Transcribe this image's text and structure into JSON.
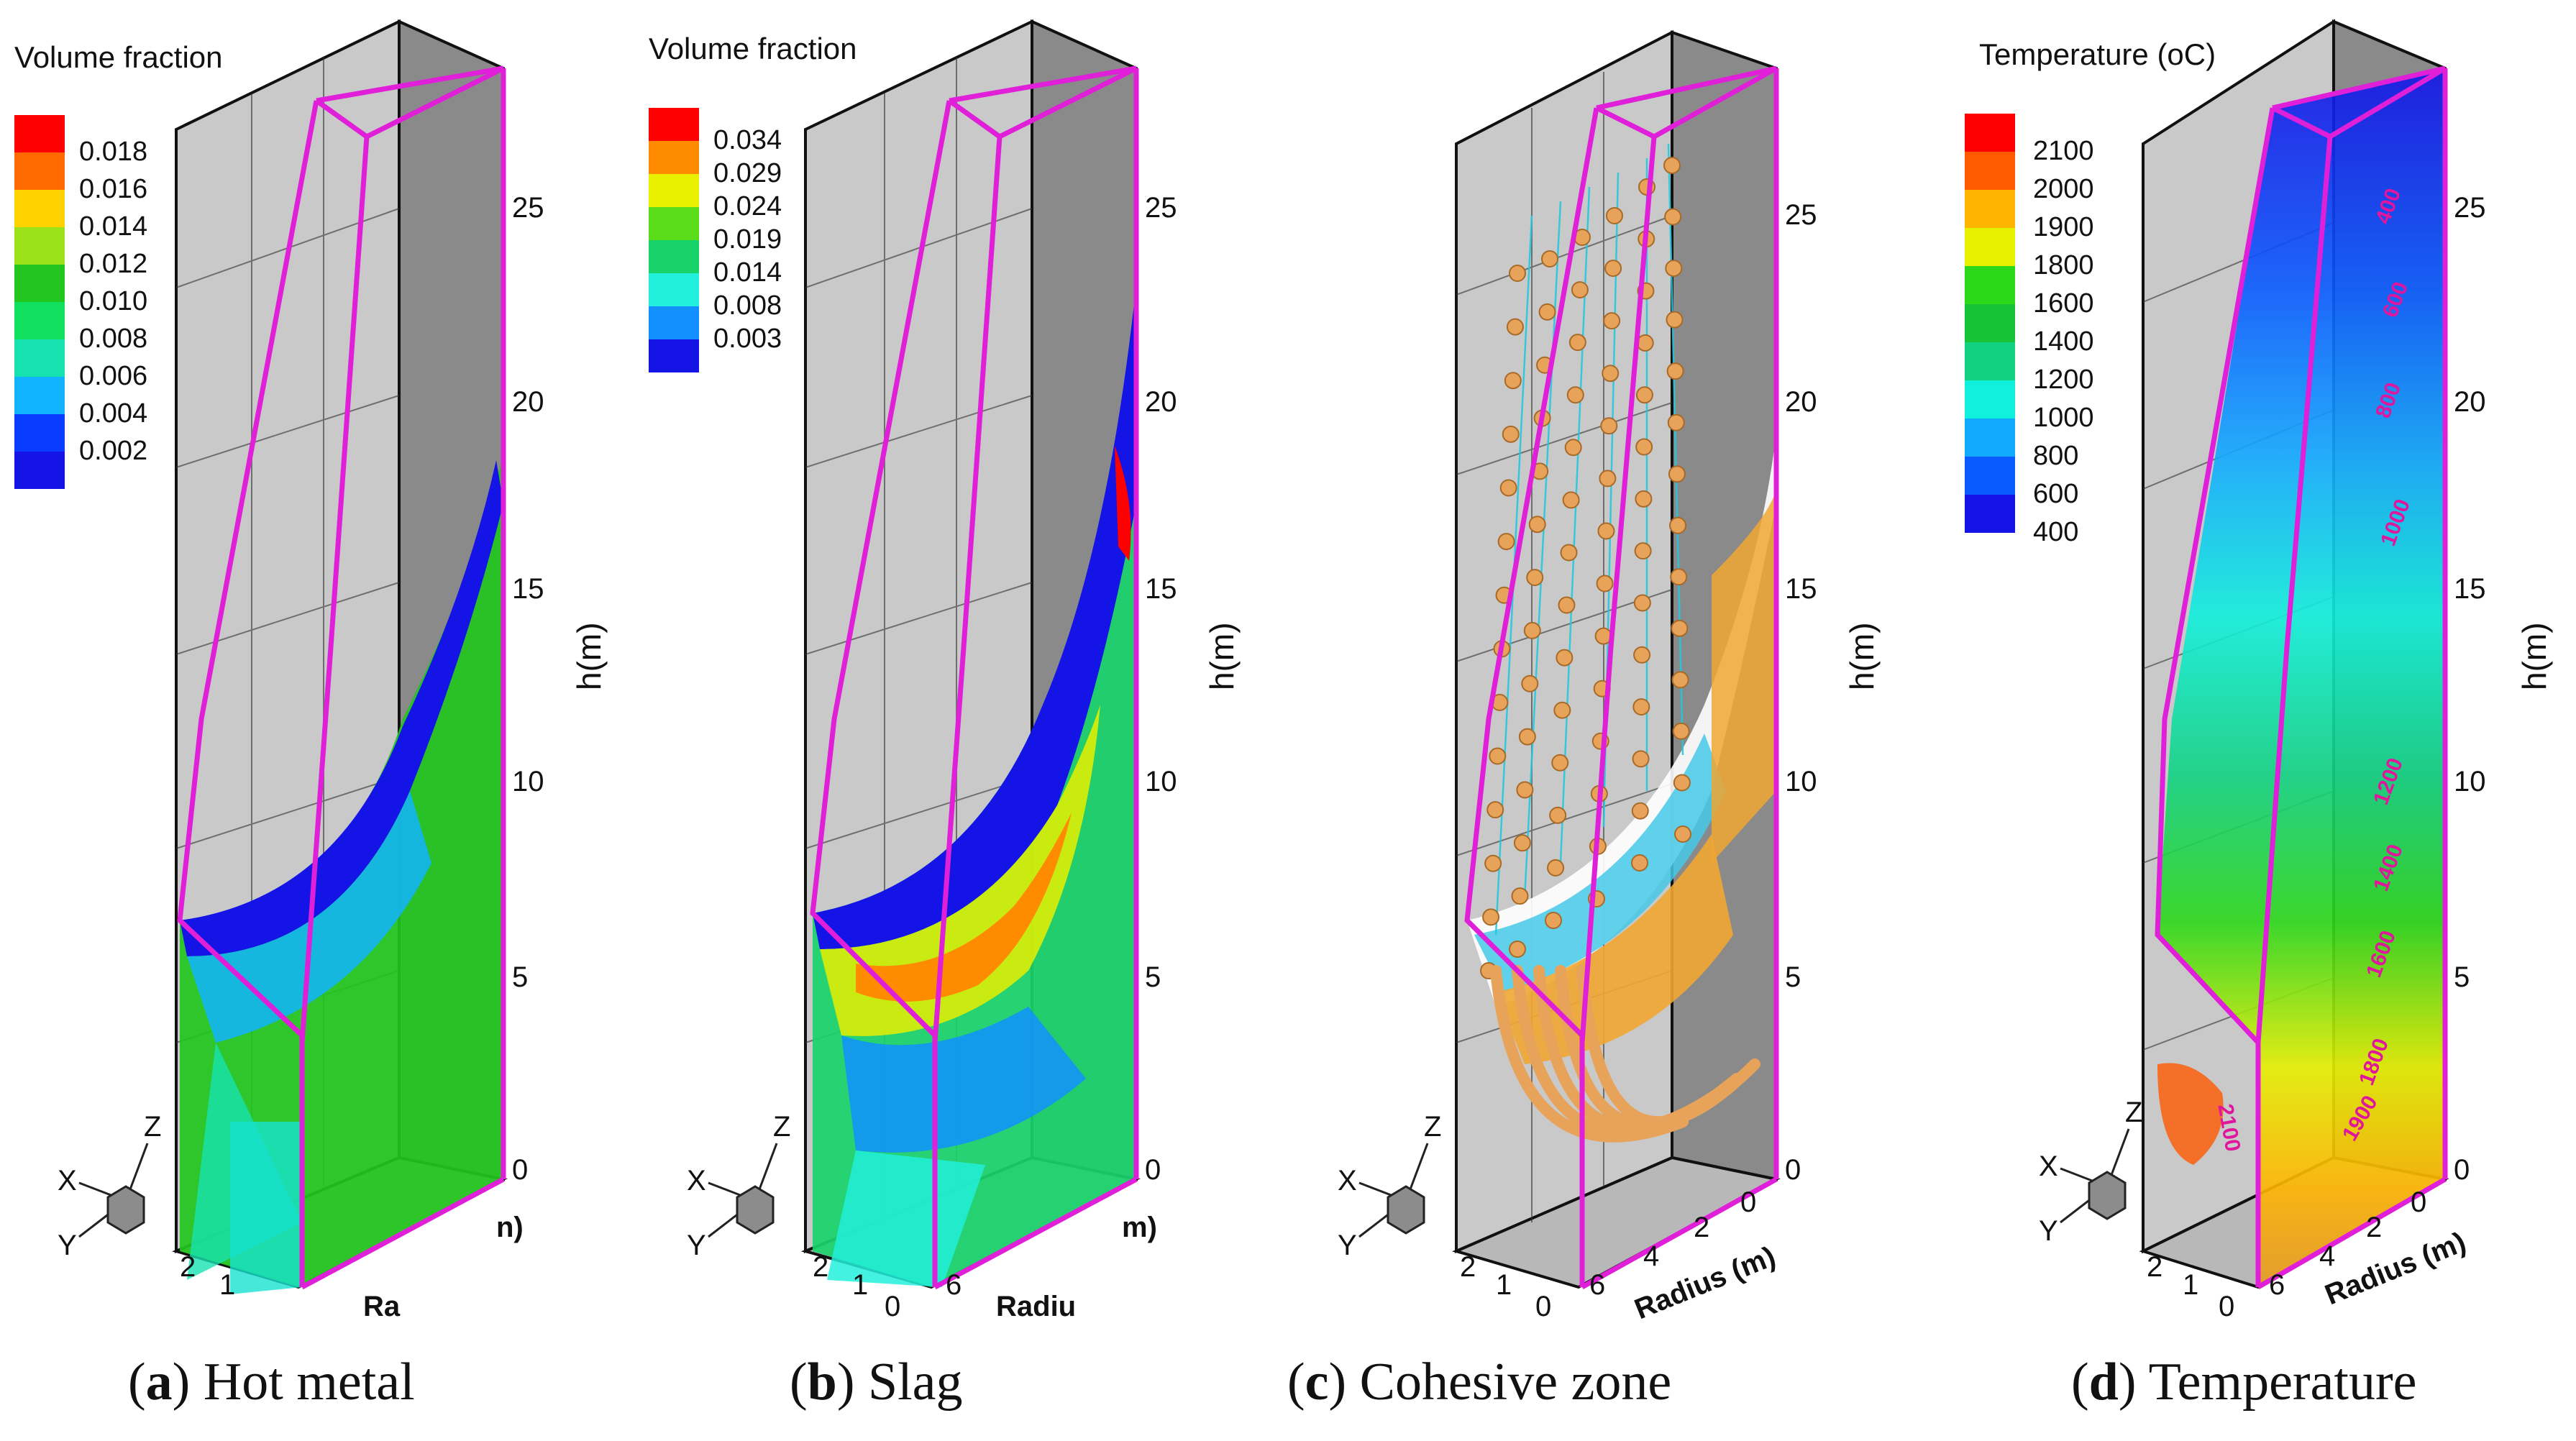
{
  "panels": [
    {
      "id": "a",
      "legend_title": "Volume fraction",
      "legend_levels": [
        "0.018",
        "0.016",
        "0.014",
        "0.012",
        "0.010",
        "0.008",
        "0.006",
        "0.004",
        "0.002"
      ],
      "legend_colors": [
        "#ff0000",
        "#ff6a00",
        "#ffd200",
        "#9be21a",
        "#22c61e",
        "#10e05e",
        "#16e2b0",
        "#12b4ff",
        "#0a3cff",
        "#1414e6"
      ],
      "h_ticks": [
        "25",
        "20",
        "15",
        "10",
        "5",
        "0"
      ],
      "h_label": "h(m)",
      "caption_letter": "a",
      "caption_text": "Hot metal"
    },
    {
      "id": "b",
      "legend_title": "Volume fraction",
      "legend_levels": [
        "0.034",
        "0.029",
        "0.024",
        "0.019",
        "0.014",
        "0.008",
        "0.003"
      ],
      "legend_colors": [
        "#ff0000",
        "#ff8c00",
        "#e8f000",
        "#5adc1a",
        "#18d26a",
        "#22f0dc",
        "#1290ff",
        "#1414e6"
      ],
      "h_ticks": [
        "25",
        "20",
        "15",
        "10",
        "5",
        "0"
      ],
      "h_label": "h(m)",
      "caption_letter": "b",
      "caption_text": "Slag"
    },
    {
      "id": "c",
      "h_ticks": [
        "25",
        "20",
        "15",
        "10",
        "5",
        "0"
      ],
      "h_label": "h(m)",
      "radius_label": "Radius (m)",
      "radius_ticks": [
        "6",
        "4",
        "2",
        "0"
      ],
      "depth_ticks": [
        "2",
        "1",
        "0"
      ],
      "caption_letter": "c",
      "caption_text": "Cohesive zone"
    },
    {
      "id": "d",
      "legend_title": "Temperature (oC)",
      "legend_levels": [
        "2100",
        "2000",
        "1900",
        "1800",
        "1600",
        "1400",
        "1200",
        "1000",
        "800",
        "600",
        "400"
      ],
      "legend_colors": [
        "#ff0000",
        "#ff5a00",
        "#ffb400",
        "#e6f000",
        "#2cd81a",
        "#18c236",
        "#12d282",
        "#10f0dc",
        "#12aaff",
        "#0a5aff",
        "#1414e6"
      ],
      "h_ticks": [
        "25",
        "20",
        "15",
        "10",
        "5",
        "0"
      ],
      "h_label": "h(m)",
      "radius_label": "Radius (m)",
      "radius_ticks": [
        "6",
        "4",
        "2",
        "0"
      ],
      "depth_ticks": [
        "2",
        "1",
        "0"
      ],
      "isolines": [
        "400",
        "600",
        "800",
        "1000",
        "1200",
        "1400",
        "1600",
        "1800",
        "1900",
        "2100"
      ],
      "caption_letter": "d",
      "caption_text": "Temperature"
    }
  ],
  "partial_labels": {
    "a_radius": "Ra",
    "a_depth": [
      "2",
      "1"
    ],
    "a_end": "n)",
    "b_radius": "Radiu",
    "b_radius_ticks": [
      "0",
      "6"
    ],
    "b_depth": [
      "2",
      "1"
    ],
    "b_end": "m)"
  },
  "triad": {
    "x": "X",
    "y": "Y",
    "z": "Z"
  }
}
